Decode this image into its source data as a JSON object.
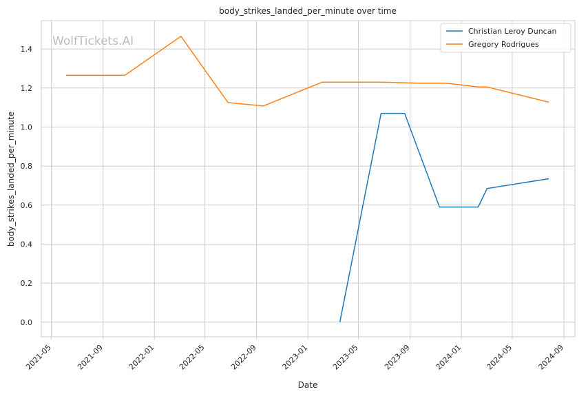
{
  "chart_data": {
    "type": "line",
    "title": "body_strikes_landed_per_minute over time",
    "xlabel": "Date",
    "ylabel": "body_strikes_landed_per_minute",
    "watermark": "WolfTickets.AI",
    "x_ticks": [
      "2021-05",
      "2021-09",
      "2022-01",
      "2022-05",
      "2022-09",
      "2023-01",
      "2023-05",
      "2023-09",
      "2024-01",
      "2024-05",
      "2024-09"
    ],
    "y_ticks": [
      "0.0",
      "0.2",
      "0.4",
      "0.6",
      "0.8",
      "1.0",
      "1.2",
      "1.4"
    ],
    "xlim": [
      "2021-04-07",
      "2024-09-27"
    ],
    "ylim": [
      -0.075,
      1.545
    ],
    "grid": true,
    "legend_position": "top-right",
    "series": [
      {
        "name": "Christian Leroy Duncan",
        "color": "#1f77b4",
        "points": [
          {
            "x": "2023-03-18",
            "y": 0.0
          },
          {
            "x": "2023-06-24",
            "y": 1.07
          },
          {
            "x": "2023-08-19",
            "y": 1.07
          },
          {
            "x": "2023-11-10",
            "y": 0.59
          },
          {
            "x": "2024-02-10",
            "y": 0.59
          },
          {
            "x": "2024-03-02",
            "y": 0.685
          },
          {
            "x": "2024-07-27",
            "y": 0.735
          }
        ]
      },
      {
        "name": "Gregory Rodrigues",
        "color": "#ff7f0e",
        "points": [
          {
            "x": "2021-06-05",
            "y": 1.265
          },
          {
            "x": "2021-10-23",
            "y": 1.265
          },
          {
            "x": "2022-03-05",
            "y": 1.465
          },
          {
            "x": "2022-06-25",
            "y": 1.125
          },
          {
            "x": "2022-09-17",
            "y": 1.108
          },
          {
            "x": "2023-02-04",
            "y": 1.23
          },
          {
            "x": "2023-06-24",
            "y": 1.23
          },
          {
            "x": "2023-09-23",
            "y": 1.225
          },
          {
            "x": "2023-11-25",
            "y": 1.225
          },
          {
            "x": "2024-02-10",
            "y": 1.205
          },
          {
            "x": "2024-03-02",
            "y": 1.205
          },
          {
            "x": "2024-07-27",
            "y": 1.127
          }
        ]
      }
    ]
  }
}
